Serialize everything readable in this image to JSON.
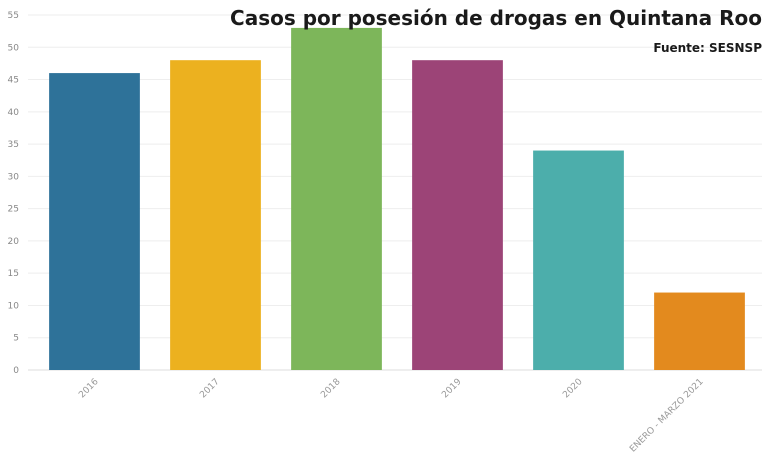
{
  "chart_data": {
    "type": "bar",
    "title": "Casos por posesión de drogas en Quintana Roo",
    "subtitle": "Fuente: SESNSP",
    "categories": [
      "2016",
      "2017",
      "2018",
      "2019",
      "2020",
      "ENERO - MARZO 2021"
    ],
    "values": [
      46,
      48,
      53,
      48,
      34,
      12
    ],
    "colors": [
      "#2e7299",
      "#ecb11f",
      "#7db65a",
      "#9c4477",
      "#4caeab",
      "#e38a1e"
    ],
    "yticks": [
      0,
      5,
      10,
      15,
      20,
      25,
      30,
      35,
      40,
      45,
      50,
      55
    ],
    "ylim": [
      0,
      55
    ],
    "xlabel": "",
    "ylabel": "",
    "grid": true
  }
}
